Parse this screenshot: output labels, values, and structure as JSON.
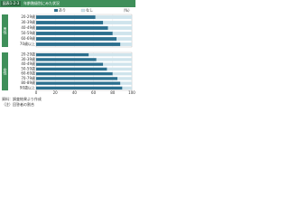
{
  "header": {
    "label": "図表1-2-3",
    "title": "年齢階級別にみた状況"
  },
  "subtitle": "（%）",
  "chart_data": [
    {
      "type": "hbar-stacked",
      "title": "男性",
      "categories": [
        "20-29歳",
        "30-39歳",
        "40-49歳",
        "50-59歳",
        "60-69歳",
        "70歳以上"
      ],
      "series": [
        {
          "name": "あり",
          "color": "#2b6f8e",
          "values": [
            62,
            70,
            75,
            80,
            84,
            88
          ]
        },
        {
          "name": "なし",
          "color": "#cfe4ec",
          "values": [
            38,
            30,
            25,
            20,
            16,
            12
          ]
        }
      ],
      "xlim": [
        0,
        100
      ],
      "xticks": [
        0,
        20,
        40,
        60,
        80,
        100
      ]
    },
    {
      "type": "hbar-stacked",
      "title": "女性",
      "categories": [
        "20-29歳",
        "30-39歳",
        "40-49歳",
        "50-59歳",
        "60-69歳",
        "70-79歳",
        "80-89歳",
        "90歳以上"
      ],
      "series": [
        {
          "name": "あり",
          "color": "#2b6f8e",
          "values": [
            55,
            63,
            70,
            74,
            80,
            85,
            88,
            90
          ]
        },
        {
          "name": "なし",
          "color": "#cfe4ec",
          "values": [
            45,
            37,
            30,
            26,
            20,
            15,
            12,
            10
          ]
        }
      ],
      "xlim": [
        0,
        100
      ],
      "xticks": [
        0,
        20,
        40,
        60,
        80,
        100
      ]
    }
  ],
  "notes": [
    "資料：調査結果より作成",
    "（注）回答者の割合"
  ]
}
